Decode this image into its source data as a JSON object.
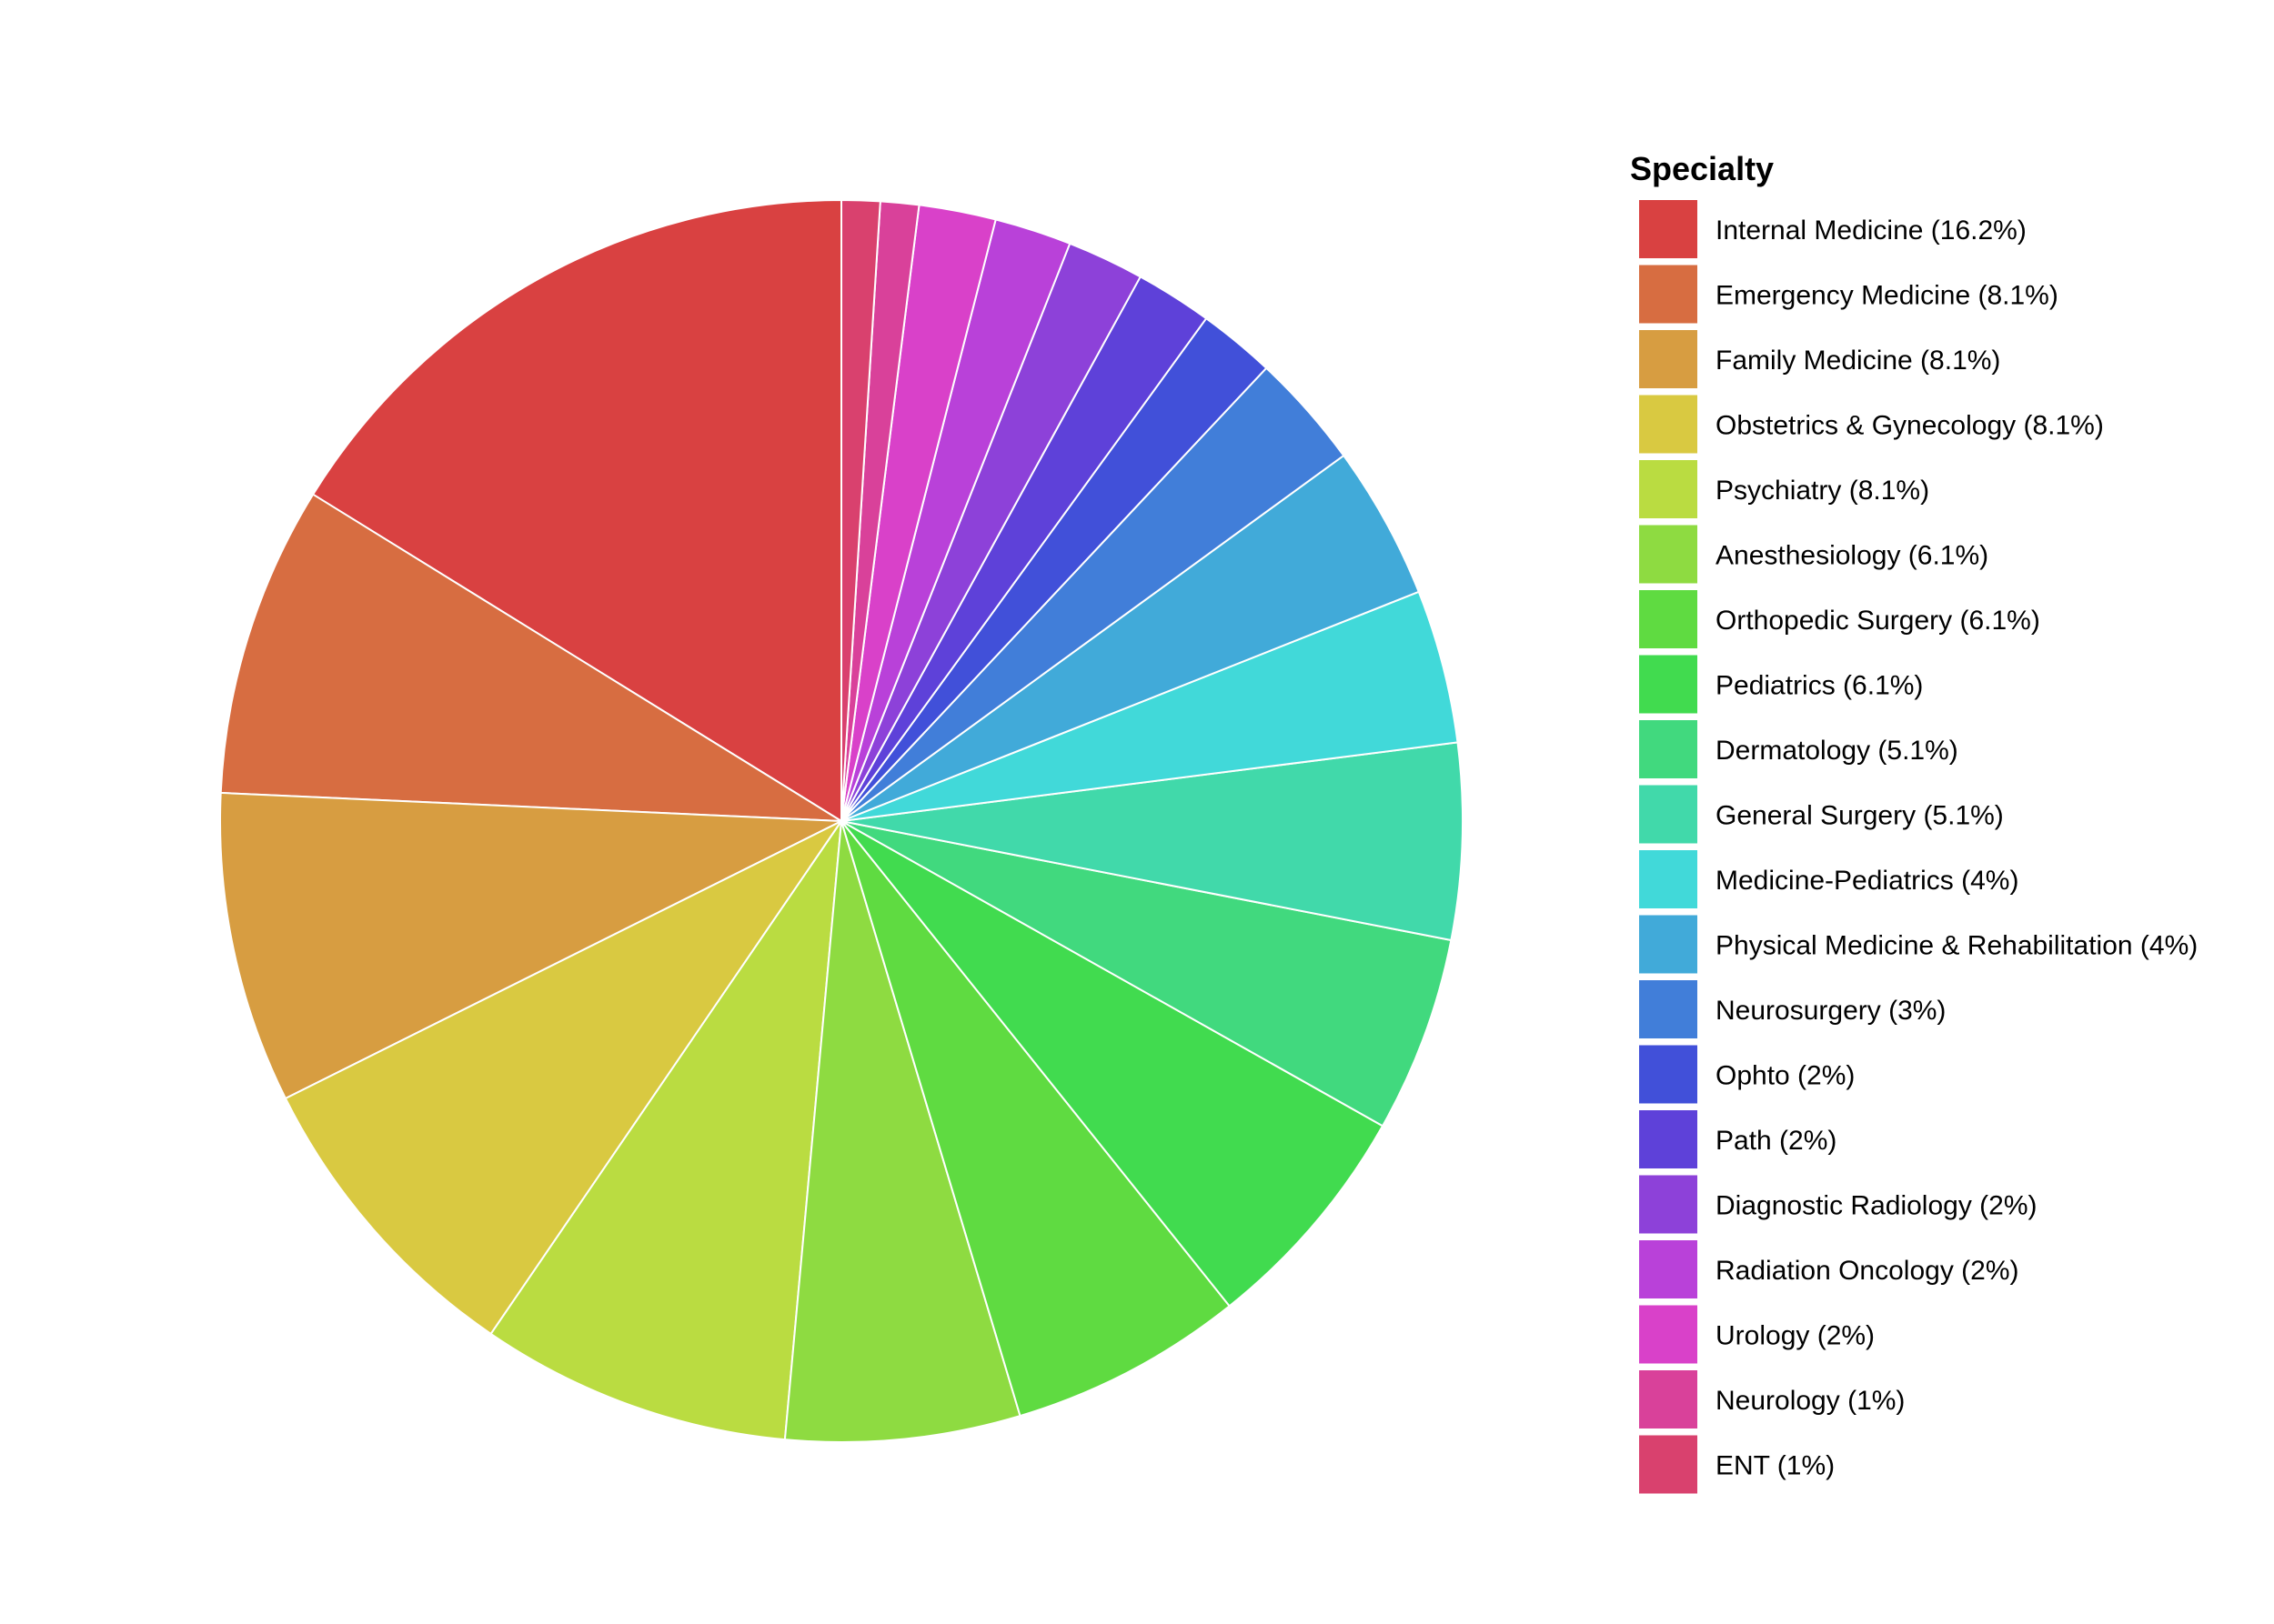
{
  "chart_data": {
    "type": "pie",
    "title": "",
    "legend_title": "Specialty",
    "legend_position": "right",
    "start_angle": "12 o'clock",
    "direction": "counterclockwise",
    "slice_border_color": "#ffffff",
    "slices": [
      {
        "label": "Internal Medicine (16.2%)",
        "name": "Internal Medicine",
        "value": 16.2,
        "color": "#D94141"
      },
      {
        "label": "Emergency Medicine (8.1%)",
        "name": "Emergency Medicine",
        "value": 8.1,
        "color": "#D76D41"
      },
      {
        "label": "Family Medicine (8.1%)",
        "name": "Family Medicine",
        "value": 8.1,
        "color": "#D79D41"
      },
      {
        "label": "Obstetrics & Gynecology (8.1%)",
        "name": "Obstetrics & Gynecology",
        "value": 8.1,
        "color": "#D9C941"
      },
      {
        "label": "Psychiatry (8.1%)",
        "name": "Psychiatry",
        "value": 8.1,
        "color": "#BADC41"
      },
      {
        "label": "Anesthesiology (6.1%)",
        "name": "Anesthesiology",
        "value": 6.1,
        "color": "#8EDB41"
      },
      {
        "label": "Orthopedic Surgery (6.1%)",
        "name": "Orthopedic Surgery",
        "value": 6.1,
        "color": "#5FDB41"
      },
      {
        "label": "Pediatrics (6.1%)",
        "name": "Pediatrics",
        "value": 6.1,
        "color": "#41DB4F"
      },
      {
        "label": "Dermatology (5.1%)",
        "name": "Dermatology",
        "value": 5.1,
        "color": "#41D97E"
      },
      {
        "label": "General Surgery (5.1%)",
        "name": "General Surgery",
        "value": 5.1,
        "color": "#41D9AA"
      },
      {
        "label": "Medicine-Pediatrics (4%)",
        "name": "Medicine-Pediatrics",
        "value": 4,
        "color": "#41D9D9"
      },
      {
        "label": "Physical Medicine & Rehabilitation (4%)",
        "name": "Physical Medicine & Rehabilitation",
        "value": 4,
        "color": "#41AAD9"
      },
      {
        "label": "Neurosurgery (3%)",
        "name": "Neurosurgery",
        "value": 3,
        "color": "#417ED9"
      },
      {
        "label": "Ophto (2%)",
        "name": "Ophto",
        "value": 2,
        "color": "#4150D9"
      },
      {
        "label": "Path (2%)",
        "name": "Path",
        "value": 2,
        "color": "#5E41D9"
      },
      {
        "label": "Diagnostic Radiology (2%)",
        "name": "Diagnostic Radiology",
        "value": 2,
        "color": "#8D41D9"
      },
      {
        "label": "Radiation Oncology (2%)",
        "name": "Radiation Oncology",
        "value": 2,
        "color": "#B941D9"
      },
      {
        "label": "Urology (2%)",
        "name": "Urology",
        "value": 2,
        "color": "#D941C9"
      },
      {
        "label": "Neurology (1%)",
        "name": "Neurology",
        "value": 1,
        "color": "#D9419A"
      },
      {
        "label": "ENT (1%)",
        "name": "ENT",
        "value": 1,
        "color": "#D9416E"
      }
    ]
  }
}
